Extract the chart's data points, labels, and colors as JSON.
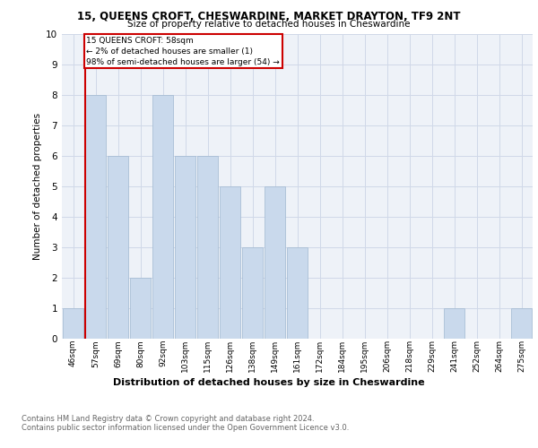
{
  "title": "15, QUEENS CROFT, CHESWARDINE, MARKET DRAYTON, TF9 2NT",
  "subtitle": "Size of property relative to detached houses in Cheswardine",
  "xlabel": "Distribution of detached houses by size in Cheswardine",
  "ylabel": "Number of detached properties",
  "categories": [
    "46sqm",
    "57sqm",
    "69sqm",
    "80sqm",
    "92sqm",
    "103sqm",
    "115sqm",
    "126sqm",
    "138sqm",
    "149sqm",
    "161sqm",
    "172sqm",
    "184sqm",
    "195sqm",
    "206sqm",
    "218sqm",
    "229sqm",
    "241sqm",
    "252sqm",
    "264sqm",
    "275sqm"
  ],
  "values": [
    1,
    8,
    6,
    2,
    8,
    6,
    6,
    5,
    3,
    5,
    3,
    0,
    0,
    0,
    0,
    0,
    0,
    1,
    0,
    0,
    1
  ],
  "bar_color": "#c9d9ec",
  "bar_edge_color": "#a0b8d0",
  "annotation_title": "15 QUEENS CROFT: 58sqm",
  "annotation_line1": "← 2% of detached houses are smaller (1)",
  "annotation_line2": "98% of semi-detached houses are larger (54) →",
  "annotation_box_color": "#ffffff",
  "annotation_box_edge_color": "#cc0000",
  "red_line_color": "#cc0000",
  "ylim": [
    0,
    10
  ],
  "yticks": [
    0,
    1,
    2,
    3,
    4,
    5,
    6,
    7,
    8,
    9,
    10
  ],
  "grid_color": "#d0d8e8",
  "background_color": "#eef2f8",
  "footnote1": "Contains HM Land Registry data © Crown copyright and database right 2024.",
  "footnote2": "Contains public sector information licensed under the Open Government Licence v3.0."
}
